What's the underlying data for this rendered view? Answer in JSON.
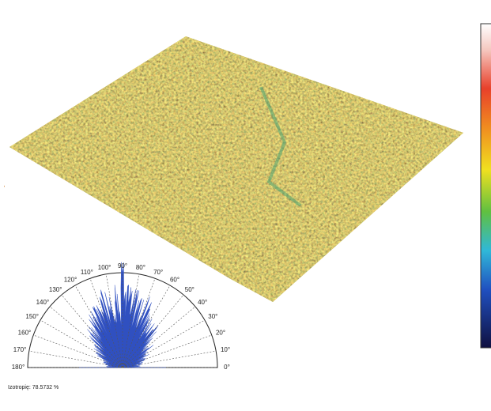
{
  "polar": {
    "angle_labels": [
      "0°",
      "10°",
      "20°",
      "30°",
      "40°",
      "50°",
      "60°",
      "70°",
      "80°",
      "90°",
      "100°",
      "110°",
      "120°",
      "130°",
      "140°",
      "150°",
      "160°",
      "170°",
      "180°"
    ]
  },
  "caption": "Izotropię: 78.5732 %"
}
